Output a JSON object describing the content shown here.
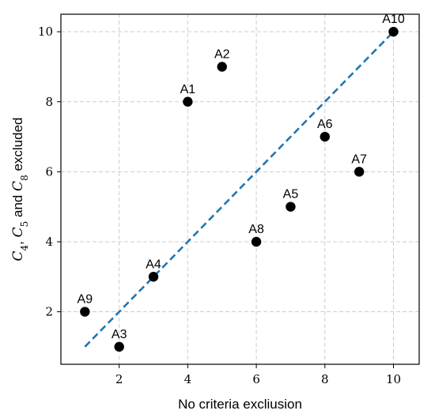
{
  "chart_data": {
    "type": "scatter",
    "xlabel": "No criteria excliusion",
    "ylabel": "C4, C5 and C8 excluded",
    "ylabel_parts": [
      {
        "text": "C",
        "italic": true
      },
      {
        "text": "4",
        "sub": true
      },
      {
        "text": ", "
      },
      {
        "text": "C",
        "italic": true
      },
      {
        "text": "5",
        "sub": true
      },
      {
        "text": " and "
      },
      {
        "text": "C",
        "italic": true
      },
      {
        "text": "8",
        "sub": true
      },
      {
        "text": " excluded"
      }
    ],
    "xlim": [
      0.3,
      10.75
    ],
    "ylim": [
      0.5,
      10.5
    ],
    "xticks": [
      2,
      4,
      6,
      8,
      10
    ],
    "yticks": [
      2,
      4,
      6,
      8,
      10
    ],
    "grid": true,
    "points": [
      {
        "label": "A1",
        "x": 4,
        "y": 8
      },
      {
        "label": "A2",
        "x": 5,
        "y": 9
      },
      {
        "label": "A3",
        "x": 2,
        "y": 1
      },
      {
        "label": "A4",
        "x": 3,
        "y": 3
      },
      {
        "label": "A5",
        "x": 7,
        "y": 5
      },
      {
        "label": "A6",
        "x": 8,
        "y": 7
      },
      {
        "label": "A7",
        "x": 9,
        "y": 6
      },
      {
        "label": "A8",
        "x": 6,
        "y": 4
      },
      {
        "label": "A9",
        "x": 1,
        "y": 2
      },
      {
        "label": "A10",
        "x": 10,
        "y": 10
      }
    ],
    "reference_line": {
      "x": [
        1,
        10
      ],
      "y": [
        1,
        10
      ],
      "style": "dashed"
    },
    "colors": {
      "points": "#000000",
      "reference_line": "#1f77b4",
      "grid": "#cccccc"
    }
  }
}
